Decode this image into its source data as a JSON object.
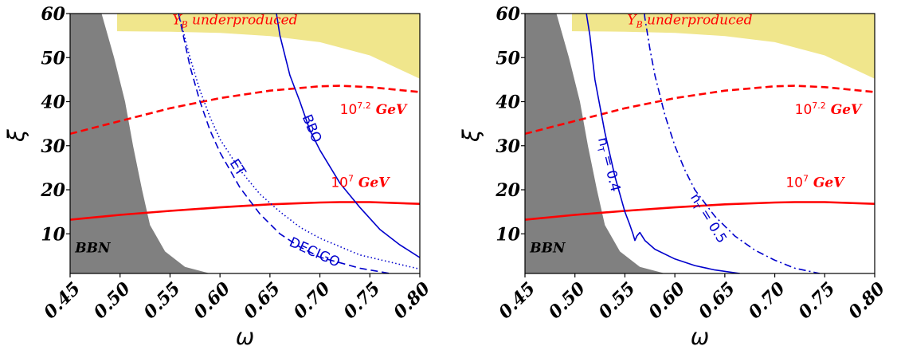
{
  "chart_data": [
    {
      "type": "line",
      "panel": "left",
      "xlabel": "ω",
      "ylabel": "ξ",
      "xlim": [
        0.45,
        0.8
      ],
      "ylim": [
        1,
        60
      ],
      "x_ticks": [
        "0.45",
        "0.50",
        "0.55",
        "0.60",
        "0.65",
        "0.70",
        "0.75",
        "0.80"
      ],
      "y_ticks": [
        "10",
        "20",
        "30",
        "40",
        "50",
        "60"
      ],
      "regions": [
        {
          "name": "BBN",
          "label": "BBN",
          "color": "#808080",
          "points": [
            [
              0.45,
              60
            ],
            [
              0.4815,
              60
            ],
            [
              0.494,
              50
            ],
            [
              0.505,
              40
            ],
            [
              0.513,
              30
            ],
            [
              0.522,
              20
            ],
            [
              0.53,
              12
            ],
            [
              0.545,
              6
            ],
            [
              0.565,
              2.5
            ],
            [
              0.59,
              1
            ],
            [
              0.45,
              1
            ]
          ]
        },
        {
          "name": "underproduced",
          "label": "Y",
          "label_sub": "B",
          "label_rest": " underproduced",
          "color": "#f0e68c",
          "points": [
            [
              0.497,
              60
            ],
            [
              0.8,
              60
            ],
            [
              0.8,
              45.2
            ],
            [
              0.75,
              50.5
            ],
            [
              0.7,
              53.5
            ],
            [
              0.65,
              54.9
            ],
            [
              0.6,
              55.6
            ],
            [
              0.55,
              55.9
            ],
            [
              0.497,
              56
            ]
          ]
        }
      ],
      "series": [
        {
          "name": "10^7.2 GeV",
          "label_base": "10",
          "label_exp": "7.2",
          "label_unit": "GeV",
          "color": "#ff0000",
          "style": "dashed",
          "x": [
            0.45,
            0.5,
            0.55,
            0.6,
            0.65,
            0.7,
            0.72,
            0.75,
            0.8
          ],
          "y": [
            32.7,
            35.6,
            38.5,
            40.8,
            42.5,
            43.5,
            43.6,
            43.3,
            42.2
          ]
        },
        {
          "name": "10^7 GeV",
          "label_base": "10",
          "label_exp": "7",
          "label_unit": "GeV",
          "color": "#ff0000",
          "style": "solid",
          "x": [
            0.45,
            0.5,
            0.55,
            0.6,
            0.65,
            0.7,
            0.72,
            0.75,
            0.8
          ],
          "y": [
            13.2,
            14.3,
            15.2,
            16.0,
            16.7,
            17.1,
            17.2,
            17.2,
            16.8
          ]
        },
        {
          "name": "BBO",
          "label": "BBO",
          "color": "#0000cc",
          "style": "solid",
          "x": [
            0.6565,
            0.66,
            0.67,
            0.68,
            0.69,
            0.7,
            0.72,
            0.74,
            0.76,
            0.78,
            0.8
          ],
          "y": [
            60,
            55,
            46,
            40,
            33.5,
            29,
            21.5,
            16,
            11,
            7.5,
            4.6
          ]
        },
        {
          "name": "ET",
          "label": "ET",
          "color": "#0000cc",
          "style": "dotted",
          "x": [
            0.5585,
            0.57,
            0.58,
            0.59,
            0.6,
            0.62,
            0.64,
            0.66,
            0.68,
            0.7,
            0.74,
            0.8
          ],
          "y": [
            60,
            50,
            42.5,
            36.5,
            31.5,
            24.5,
            19,
            15,
            11.5,
            9,
            5.2,
            2
          ]
        },
        {
          "name": "DECIGO",
          "label": "DECIGO",
          "color": "#0000cc",
          "style": "dashed",
          "x": [
            0.5585,
            0.57,
            0.58,
            0.59,
            0.6,
            0.62,
            0.64,
            0.66,
            0.68,
            0.7,
            0.74,
            0.77
          ],
          "y": [
            60,
            48,
            40,
            33.5,
            28.5,
            20.5,
            14.5,
            10,
            7,
            4.7,
            2.2,
            1
          ]
        }
      ]
    },
    {
      "type": "line",
      "panel": "right",
      "xlabel": "ω",
      "ylabel": "ξ",
      "xlim": [
        0.45,
        0.8
      ],
      "ylim": [
        1,
        60
      ],
      "x_ticks": [
        "0.45",
        "0.50",
        "0.55",
        "0.60",
        "0.65",
        "0.70",
        "0.75",
        "0.80"
      ],
      "y_ticks": [
        "10",
        "20",
        "30",
        "40",
        "50",
        "60"
      ],
      "regions": [
        {
          "name": "BBN",
          "label": "BBN",
          "color": "#808080",
          "points": [
            [
              0.45,
              60
            ],
            [
              0.4815,
              60
            ],
            [
              0.494,
              50
            ],
            [
              0.505,
              40
            ],
            [
              0.513,
              30
            ],
            [
              0.522,
              20
            ],
            [
              0.53,
              12
            ],
            [
              0.545,
              6
            ],
            [
              0.565,
              2.5
            ],
            [
              0.59,
              1
            ],
            [
              0.45,
              1
            ]
          ]
        },
        {
          "name": "underproduced",
          "label": "Y",
          "label_sub": "B",
          "label_rest": " underproduced",
          "color": "#f0e68c",
          "points": [
            [
              0.497,
              60
            ],
            [
              0.8,
              60
            ],
            [
              0.8,
              45.2
            ],
            [
              0.75,
              50.5
            ],
            [
              0.7,
              53.5
            ],
            [
              0.65,
              54.9
            ],
            [
              0.6,
              55.6
            ],
            [
              0.55,
              55.9
            ],
            [
              0.497,
              56
            ]
          ]
        }
      ],
      "series": [
        {
          "name": "10^7.2 GeV",
          "label_base": "10",
          "label_exp": "7.2",
          "label_unit": "GeV",
          "color": "#ff0000",
          "style": "dashed",
          "x": [
            0.45,
            0.5,
            0.55,
            0.6,
            0.65,
            0.7,
            0.72,
            0.75,
            0.8
          ],
          "y": [
            32.7,
            35.6,
            38.5,
            40.8,
            42.5,
            43.5,
            43.6,
            43.3,
            42.2
          ]
        },
        {
          "name": "10^7 GeV",
          "label_base": "10",
          "label_exp": "7",
          "label_unit": "GeV",
          "color": "#ff0000",
          "style": "solid",
          "x": [
            0.45,
            0.5,
            0.55,
            0.6,
            0.65,
            0.7,
            0.72,
            0.75,
            0.8
          ],
          "y": [
            13.2,
            14.3,
            15.2,
            16.0,
            16.7,
            17.1,
            17.2,
            17.2,
            16.8
          ]
        },
        {
          "name": "nT = 0.4",
          "label": "n",
          "label_sub": "T",
          "label_rest": " = 0.4",
          "color": "#0000cc",
          "style": "solid",
          "x": [
            0.5115,
            0.515,
            0.52,
            0.53,
            0.54,
            0.55,
            0.555,
            0.558,
            0.56,
            0.562,
            0.565,
            0.57,
            0.575,
            0.58,
            0.6,
            0.62,
            0.64,
            0.665
          ],
          "y": [
            60,
            55,
            45,
            33,
            23,
            15,
            12,
            10,
            8.5,
            9.5,
            10.3,
            8.5,
            7.5,
            6.5,
            4.3,
            2.8,
            1.8,
            1
          ]
        },
        {
          "name": "nT = 0.5",
          "label": "n",
          "label_sub": "T",
          "label_rest": " = 0.5",
          "color": "#0000cc",
          "style": "dashdot",
          "x": [
            0.5695,
            0.57,
            0.575,
            0.58,
            0.59,
            0.6,
            0.61,
            0.62,
            0.64,
            0.66,
            0.68,
            0.7,
            0.72,
            0.745
          ],
          "y": [
            60,
            59,
            52,
            46,
            37,
            30,
            24.5,
            20,
            14,
            9.5,
            6.3,
            4,
            2.2,
            1
          ]
        }
      ]
    }
  ]
}
